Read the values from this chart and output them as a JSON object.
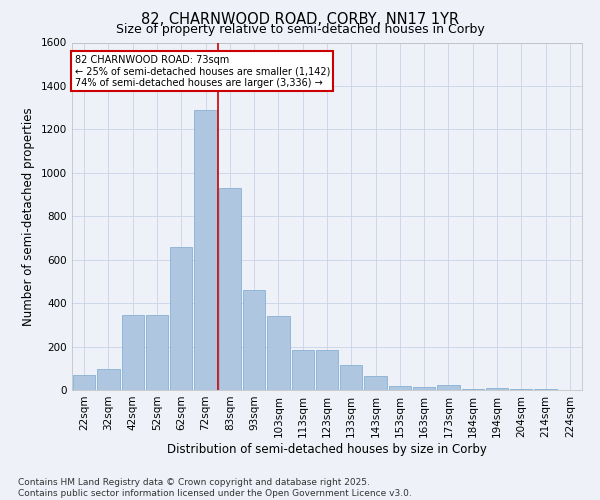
{
  "title_line1": "82, CHARNWOOD ROAD, CORBY, NN17 1YR",
  "title_line2": "Size of property relative to semi-detached houses in Corby",
  "xlabel": "Distribution of semi-detached houses by size in Corby",
  "ylabel": "Number of semi-detached properties",
  "categories": [
    "22sqm",
    "32sqm",
    "42sqm",
    "52sqm",
    "62sqm",
    "72sqm",
    "83sqm",
    "93sqm",
    "103sqm",
    "113sqm",
    "123sqm",
    "133sqm",
    "143sqm",
    "153sqm",
    "163sqm",
    "173sqm",
    "184sqm",
    "194sqm",
    "204sqm",
    "214sqm",
    "224sqm"
  ],
  "values": [
    70,
    95,
    345,
    345,
    660,
    1290,
    930,
    460,
    340,
    185,
    185,
    115,
    65,
    18,
    12,
    22,
    4,
    8,
    4,
    4,
    0
  ],
  "bar_color": "#aec6df",
  "bar_edge_color": "#7aaacf",
  "grid_color": "#c8d4e8",
  "vline_color": "#cc0000",
  "annotation_box_text": "82 CHARNWOOD ROAD: 73sqm\n← 25% of semi-detached houses are smaller (1,142)\n74% of semi-detached houses are larger (3,336) →",
  "annotation_box_color": "#cc0000",
  "ylim": [
    0,
    1600
  ],
  "yticks": [
    0,
    200,
    400,
    600,
    800,
    1000,
    1200,
    1400,
    1600
  ],
  "footnote_line1": "Contains HM Land Registry data © Crown copyright and database right 2025.",
  "footnote_line2": "Contains public sector information licensed under the Open Government Licence v3.0.",
  "background_color": "#eef2f8",
  "plot_background": "#eef2f8",
  "title_fontsize": 10.5,
  "subtitle_fontsize": 9,
  "axis_label_fontsize": 8.5,
  "tick_fontsize": 7.5,
  "footnote_fontsize": 6.5,
  "vline_index": 5.5
}
